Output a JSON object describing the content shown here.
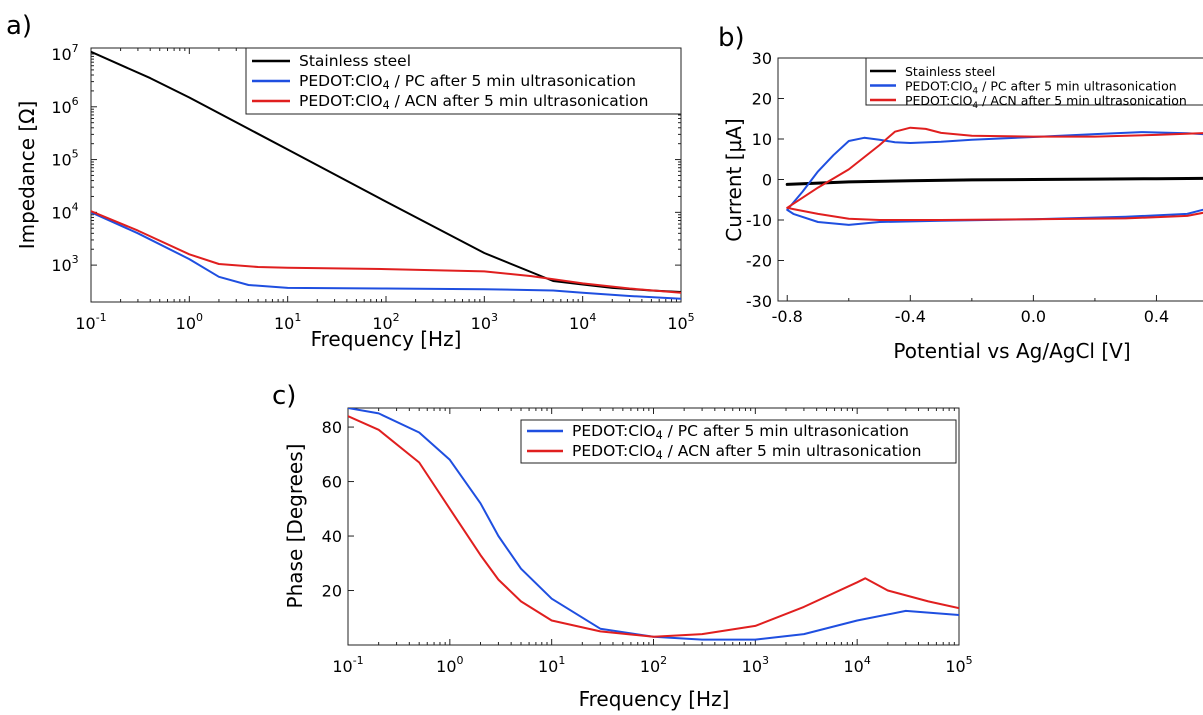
{
  "panels": {
    "a": {
      "label": "a)"
    },
    "b": {
      "label": "b)"
    },
    "c": {
      "label": "c)"
    }
  },
  "chart_data": [
    {
      "panel": "a",
      "type": "line",
      "xlabel": "Frequency [Hz]",
      "ylabel": "Impedance [Ω]",
      "xscale": "log",
      "yscale": "log",
      "xlim": [
        0.1,
        100000
      ],
      "ylim": [
        200,
        13000000
      ],
      "xtick_labels": [
        {
          "base": "10",
          "exp": "-1"
        },
        {
          "base": "10",
          "exp": "0"
        },
        {
          "base": "10",
          "exp": "1"
        },
        {
          "base": "10",
          "exp": "2"
        },
        {
          "base": "10",
          "exp": "3"
        },
        {
          "base": "10",
          "exp": "4"
        },
        {
          "base": "10",
          "exp": "5"
        }
      ],
      "ytick_labels": [
        {
          "base": "10",
          "exp": "3"
        },
        {
          "base": "10",
          "exp": "4"
        },
        {
          "base": "10",
          "exp": "5"
        },
        {
          "base": "10",
          "exp": "6"
        },
        {
          "base": "10",
          "exp": "7"
        }
      ],
      "legend_position": "top-right",
      "series": [
        {
          "name": "Stainless steel",
          "color": "#000000",
          "x": [
            0.1,
            0.4,
            1,
            10,
            100,
            1000,
            5000,
            10000,
            20000,
            50000,
            100000
          ],
          "y": [
            11000000,
            3500000,
            1500000,
            155000,
            16000,
            1700,
            500,
            430,
            370,
            330,
            310
          ]
        },
        {
          "name": "PEDOT:ClO4 / PC after 5 min ultrasonication",
          "color": "#1f4fe0",
          "x": [
            0.1,
            0.3,
            1,
            2,
            4,
            10,
            100,
            1000,
            5000,
            10000,
            30000,
            100000
          ],
          "y": [
            10000,
            4000,
            1300,
            600,
            420,
            370,
            360,
            350,
            330,
            300,
            260,
            230
          ]
        },
        {
          "name": "PEDOT:ClO4 / ACN after 5 min ultrasonication",
          "color": "#e01f1f",
          "x": [
            0.1,
            0.3,
            1,
            2,
            5,
            10,
            100,
            1000,
            3000,
            10000,
            30000,
            100000
          ],
          "y": [
            10500,
            4500,
            1600,
            1050,
            920,
            890,
            840,
            760,
            620,
            450,
            360,
            300
          ]
        }
      ]
    },
    {
      "panel": "b",
      "type": "line",
      "xlabel": "Potential vs Ag/AgCl [V]",
      "ylabel": "Current [µA]",
      "xlim": [
        -0.83,
        0.6
      ],
      "ylim": [
        -30,
        30
      ],
      "xtick_labels": [
        "-0.8",
        "-0.4",
        "0.0",
        "0.4"
      ],
      "xtick_values": [
        -0.8,
        -0.4,
        0.0,
        0.4
      ],
      "ytick_labels": [
        "30",
        "20",
        "10",
        "0",
        "-10",
        "-20",
        "-30"
      ],
      "ytick_values": [
        30,
        20,
        10,
        0,
        -10,
        -20,
        -30
      ],
      "legend_position": "top-right",
      "series": [
        {
          "name": "Stainless steel",
          "color": "#000000",
          "x": [
            -0.8,
            -0.7,
            -0.6,
            -0.4,
            -0.2,
            0.0,
            0.2,
            0.4,
            0.6
          ],
          "y": [
            -1.2,
            -0.9,
            -0.6,
            -0.3,
            -0.1,
            0.0,
            0.1,
            0.2,
            0.3
          ]
        },
        {
          "name": "PEDOT:ClO4 / PC after 5 min ultrasonication",
          "color": "#1f4fe0",
          "x": [
            -0.8,
            -0.75,
            -0.7,
            -0.65,
            -0.6,
            -0.55,
            -0.5,
            -0.45,
            -0.4,
            -0.3,
            -0.2,
            0.0,
            0.2,
            0.35,
            0.5,
            0.6,
            0.6,
            0.5,
            0.3,
            0.0,
            -0.3,
            -0.5,
            -0.6,
            -0.7,
            -0.78,
            -0.8
          ],
          "y": [
            -7.5,
            -3,
            2,
            6,
            9.5,
            10.3,
            9.8,
            9.2,
            9.0,
            9.3,
            9.8,
            10.5,
            11.2,
            11.7,
            11.4,
            11.0,
            -6.5,
            -8.5,
            -9.2,
            -9.8,
            -10.2,
            -10.5,
            -11.2,
            -10.5,
            -8.5,
            -7.5
          ]
        },
        {
          "name": "PEDOT:ClO4 / ACN after 5 min ultrasonication",
          "color": "#e01f1f",
          "x": [
            -0.8,
            -0.75,
            -0.7,
            -0.6,
            -0.5,
            -0.45,
            -0.4,
            -0.35,
            -0.3,
            -0.2,
            0.0,
            0.2,
            0.4,
            0.6,
            0.6,
            0.5,
            0.3,
            0.0,
            -0.3,
            -0.5,
            -0.6,
            -0.7,
            -0.78,
            -0.8
          ],
          "y": [
            -7,
            -4.5,
            -2,
            2.5,
            8.5,
            11.8,
            12.8,
            12.5,
            11.5,
            10.8,
            10.6,
            10.6,
            11.0,
            11.6,
            -7.5,
            -9.0,
            -9.6,
            -9.8,
            -10.0,
            -10.0,
            -9.7,
            -8.5,
            -7.3,
            -7.0
          ]
        }
      ]
    },
    {
      "panel": "c",
      "type": "line",
      "xlabel": "Frequency [Hz]",
      "ylabel": "Phase [Degrees]",
      "xscale": "log",
      "xlim": [
        0.1,
        100000
      ],
      "ylim": [
        0,
        87
      ],
      "xtick_labels": [
        {
          "base": "10",
          "exp": "-1"
        },
        {
          "base": "10",
          "exp": "0"
        },
        {
          "base": "10",
          "exp": "1"
        },
        {
          "base": "10",
          "exp": "2"
        },
        {
          "base": "10",
          "exp": "3"
        },
        {
          "base": "10",
          "exp": "4"
        },
        {
          "base": "10",
          "exp": "5"
        }
      ],
      "ytick_labels": [
        "80",
        "60",
        "40",
        "20"
      ],
      "ytick_values": [
        80,
        60,
        40,
        20
      ],
      "legend_position": "top-right",
      "series": [
        {
          "name": "PEDOT:ClO4 / PC after 5 min ultrasonication",
          "color": "#1f4fe0",
          "x": [
            0.1,
            0.2,
            0.5,
            1,
            2,
            3,
            5,
            10,
            30,
            100,
            300,
            1000,
            3000,
            10000,
            30000,
            100000
          ],
          "y": [
            87,
            85,
            78,
            68,
            52,
            40,
            28,
            17,
            6,
            3,
            2,
            2,
            4,
            9,
            12.5,
            11
          ]
        },
        {
          "name": "PEDOT:ClO4 / ACN after 5 min ultrasonication",
          "color": "#e01f1f",
          "x": [
            0.1,
            0.2,
            0.5,
            1,
            2,
            3,
            5,
            10,
            30,
            100,
            300,
            1000,
            3000,
            10000,
            12000,
            20000,
            50000,
            100000
          ],
          "y": [
            84,
            79,
            67,
            50,
            33,
            24,
            16,
            9,
            5,
            3,
            4,
            7,
            14,
            23,
            24.5,
            20,
            16,
            13.5
          ]
        }
      ]
    }
  ]
}
